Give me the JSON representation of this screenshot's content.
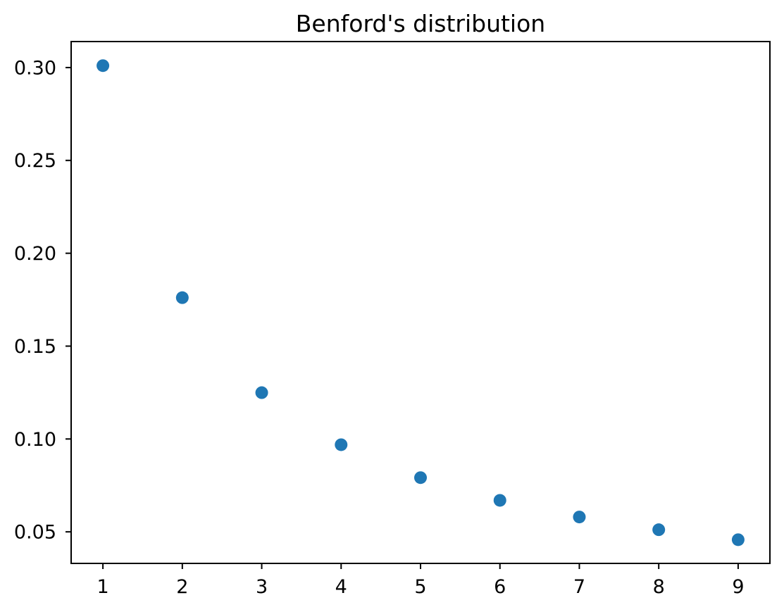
{
  "figure": {
    "background": "#ffffff"
  },
  "chart_data": {
    "type": "scatter",
    "title": "Benford's distribution",
    "xlabel": "",
    "ylabel": "",
    "x": [
      1,
      2,
      3,
      4,
      5,
      6,
      7,
      8,
      9
    ],
    "y": [
      0.30103,
      0.17609,
      0.12494,
      0.09691,
      0.07918,
      0.06695,
      0.05799,
      0.05115,
      0.04576
    ],
    "xlim": [
      0.6,
      9.4
    ],
    "ylim": [
      0.033,
      0.314
    ],
    "x_ticks": [
      {
        "value": 1,
        "label": "1"
      },
      {
        "value": 2,
        "label": "2"
      },
      {
        "value": 3,
        "label": "3"
      },
      {
        "value": 4,
        "label": "4"
      },
      {
        "value": 5,
        "label": "5"
      },
      {
        "value": 6,
        "label": "6"
      },
      {
        "value": 7,
        "label": "7"
      },
      {
        "value": 8,
        "label": "8"
      },
      {
        "value": 9,
        "label": "9"
      }
    ],
    "y_ticks": [
      {
        "value": 0.05,
        "label": "0.05"
      },
      {
        "value": 0.1,
        "label": "0.10"
      },
      {
        "value": 0.15,
        "label": "0.15"
      },
      {
        "value": 0.2,
        "label": "0.20"
      },
      {
        "value": 0.25,
        "label": "0.25"
      },
      {
        "value": 0.3,
        "label": "0.30"
      }
    ],
    "grid": false,
    "legend": null,
    "marker_color": "#1f77b4",
    "axis_color": "#000000"
  }
}
